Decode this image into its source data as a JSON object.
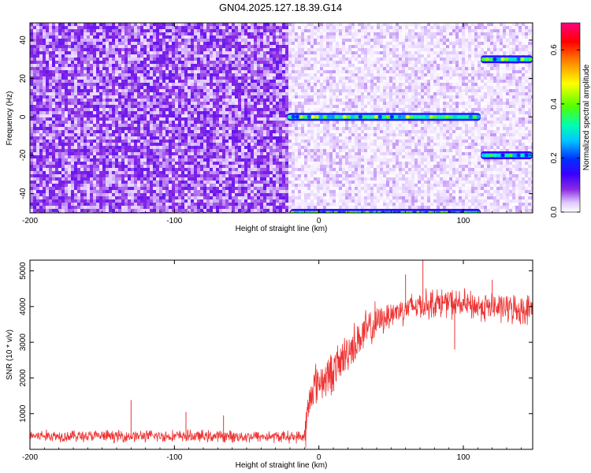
{
  "title": "GN04.2025.127.18.39.G14",
  "chart_data": [
    {
      "type": "heatmap",
      "xlabel": "Height of straight line (km)",
      "ylabel": "Frequency (Hz)",
      "xlim": [
        -200,
        148
      ],
      "ylim": [
        -50,
        49
      ],
      "xticks": [
        "-200",
        "-100",
        "0",
        "100"
      ],
      "yticks": [
        "-40",
        "-20",
        "0",
        "20",
        "40"
      ],
      "colorbar": {
        "label": "Normalized spectral amplitude",
        "range": [
          0,
          0.7
        ],
        "ticks": [
          "0.0",
          "0.2",
          "0.4",
          "0.6"
        ],
        "colors": [
          "#ffffff",
          "#e0c8ff",
          "#8a2be2",
          "#3a00ff",
          "#0030ff",
          "#00c8ff",
          "#00ffb0",
          "#55ff00",
          "#ffff00",
          "#ff8000",
          "#ff0000",
          "#ff0080"
        ]
      },
      "noise": {
        "strong_until_x": -22,
        "strong_amp": 0.07,
        "weak_amp": 0.03
      },
      "tracks": [
        {
          "x_start": -22,
          "x_end": 112,
          "y": 0,
          "amp": 0.3
        },
        {
          "x_start": -20,
          "x_end": 112,
          "y": -50,
          "amp": 0.25
        },
        {
          "x_start": 112,
          "x_end": 148,
          "y": 30,
          "amp": 0.28
        },
        {
          "x_start": 112,
          "x_end": 148,
          "y": -20,
          "amp": 0.26
        }
      ]
    },
    {
      "type": "line",
      "xlabel": "Height of straight line (km)",
      "ylabel": "SNR (10 * v/v)",
      "xlim": [
        -200,
        148
      ],
      "ylim": [
        0,
        5300
      ],
      "xticks": [
        "-200",
        "-100",
        "0",
        "100"
      ],
      "yticks": [
        "1000",
        "2000",
        "3000",
        "4000",
        "5000"
      ],
      "color": "#ee3333",
      "envelope": {
        "x": [
          -200,
          -150,
          -100,
          -50,
          -10,
          -8,
          -5,
          0,
          5,
          10,
          15,
          20,
          30,
          40,
          50,
          60,
          70,
          80,
          90,
          100,
          110,
          120,
          130,
          140,
          148
        ],
        "y": [
          380,
          370,
          370,
          360,
          350,
          900,
          1700,
          1900,
          2000,
          2200,
          2450,
          2750,
          3200,
          3550,
          3800,
          3950,
          4050,
          4100,
          4100,
          4050,
          4000,
          3980,
          3950,
          3920,
          3900
        ]
      },
      "spikes": [
        {
          "x": -130,
          "y": 1380
        },
        {
          "x": -92,
          "y": 1050
        },
        {
          "x": -66,
          "y": 950
        },
        {
          "x": 72,
          "y": 5300
        },
        {
          "x": 60,
          "y": 4900
        },
        {
          "x": 94,
          "y": 2800
        },
        {
          "x": 120,
          "y": 4750
        }
      ]
    }
  ]
}
